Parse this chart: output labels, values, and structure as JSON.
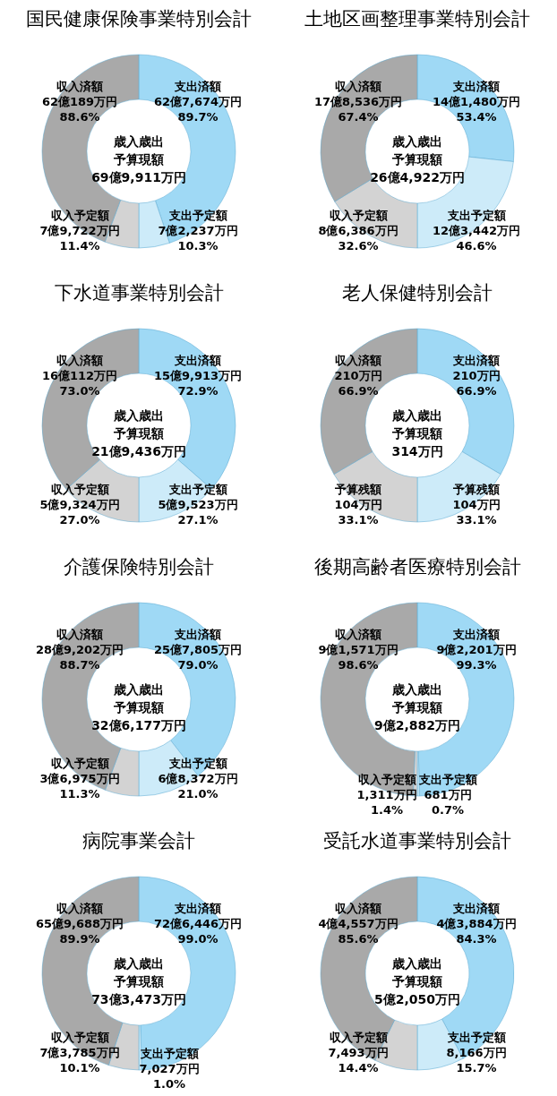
{
  "chart_data": [
    {
      "type": "donut",
      "title": "国民健康保険事業特別会計",
      "categories": [
        "支出済額",
        "支出予定額",
        "収入予定額",
        "収入済額"
      ],
      "values": [
        89.7,
        10.3,
        11.4,
        88.6
      ],
      "colors": [
        "#9fd9f5",
        "#cdebf9",
        "#d3d3d3",
        "#a9a9a9"
      ],
      "value_labels": [
        "62億7,674万円\n89.7%",
        "7億2,237万円\n10.3%",
        "7億9,722万円\n11.4%",
        "62億189万円\n88.6%"
      ],
      "annotations": [
        "歳入歳出予算現額",
        "69億9,911万円"
      ]
    },
    {
      "type": "donut",
      "title": "土地区画整理事業特別会計",
      "categories": [
        "支出済額",
        "支出予定額",
        "収入予定額",
        "収入済額"
      ],
      "values": [
        53.4,
        46.6,
        32.6,
        67.4
      ],
      "colors": [
        "#9fd9f5",
        "#cdebf9",
        "#d3d3d3",
        "#a9a9a9"
      ],
      "value_labels": [
        "14億1,480万円\n53.4%",
        "12億3,442万円\n46.6%",
        "8億6,386万円\n32.6%",
        "17億8,536万円\n67.4%"
      ],
      "annotations": [
        "歳入歳出予算現額",
        "26億4,922万円"
      ]
    },
    {
      "type": "donut",
      "title": "下水道事業特別会計",
      "categories": [
        "支出済額",
        "支出予定額",
        "収入予定額",
        "収入済額"
      ],
      "values": [
        72.9,
        27.1,
        27.0,
        73.0
      ],
      "colors": [
        "#9fd9f5",
        "#cdebf9",
        "#d3d3d3",
        "#a9a9a9"
      ],
      "value_labels": [
        "15億9,913万円\n72.9%",
        "5億9,523万円\n27.1%",
        "5億9,324万円\n27.0%",
        "16億112万円\n73.0%"
      ],
      "annotations": [
        "歳入歳出予算現額",
        "21億9,436万円"
      ]
    },
    {
      "type": "donut",
      "title": "老人保健特別会計",
      "categories": [
        "支出済額",
        "予算残額",
        "予算残額",
        "収入済額"
      ],
      "values": [
        66.9,
        33.1,
        33.1,
        66.9
      ],
      "colors": [
        "#9fd9f5",
        "#cdebf9",
        "#d3d3d3",
        "#a9a9a9"
      ],
      "value_labels": [
        "210万円\n66.9%",
        "104万円\n33.1%",
        "104万円\n33.1%",
        "210万円\n66.9%"
      ],
      "annotations": [
        "歳入歳出予算現額",
        "314万円"
      ]
    },
    {
      "type": "donut",
      "title": "介護保険特別会計",
      "categories": [
        "支出済額",
        "支出予定額",
        "収入予定額",
        "収入済額"
      ],
      "values": [
        79.0,
        21.0,
        11.3,
        88.7
      ],
      "colors": [
        "#9fd9f5",
        "#cdebf9",
        "#d3d3d3",
        "#a9a9a9"
      ],
      "value_labels": [
        "25億7,805万円\n79.0%",
        "6億8,372万円\n21.0%",
        "3億6,975万円\n11.3%",
        "28億9,202万円\n88.7%"
      ],
      "annotations": [
        "歳入歳出予算現額",
        "32億6,177万円"
      ]
    },
    {
      "type": "donut",
      "title": "後期高齢者医療特別会計",
      "categories": [
        "支出済額",
        "支出予定額",
        "収入予定額",
        "収入済額"
      ],
      "values": [
        99.3,
        0.7,
        1.4,
        98.6
      ],
      "colors": [
        "#9fd9f5",
        "#cdebf9",
        "#d3d3d3",
        "#a9a9a9"
      ],
      "value_labels": [
        "9億2,201万円\n99.3%",
        "681万円\n0.7%",
        "1,311万円\n1.4%",
        "9億1,571万円\n98.6%"
      ],
      "annotations": [
        "歳入歳出予算現額",
        "9億2,882万円"
      ]
    },
    {
      "type": "donut",
      "title": "病院事業会計",
      "categories": [
        "支出済額",
        "支出予定額",
        "収入予定額",
        "収入済額"
      ],
      "values": [
        99.0,
        1.0,
        10.1,
        89.9
      ],
      "colors": [
        "#9fd9f5",
        "#cdebf9",
        "#d3d3d3",
        "#a9a9a9"
      ],
      "value_labels": [
        "72億6,446万円\n99.0%",
        "7,027万円\n1.0%",
        "7億3,785万円\n10.1%",
        "65億9,688万円\n89.9%"
      ],
      "annotations": [
        "歳入歳出予算現額",
        "73億3,473万円"
      ]
    },
    {
      "type": "donut",
      "title": "受託水道事業特別会計",
      "categories": [
        "支出済額",
        "支出予定額",
        "収入予定額",
        "収入済額"
      ],
      "values": [
        84.3,
        15.7,
        14.4,
        85.6
      ],
      "colors": [
        "#9fd9f5",
        "#cdebf9",
        "#d3d3d3",
        "#a9a9a9"
      ],
      "value_labels": [
        "4億3,884万円\n84.3%",
        "8,166万円\n15.7%",
        "7,493万円\n14.4%",
        "4億4,557万円\n85.6%"
      ],
      "annotations": [
        "歳入歳出予算現額",
        "5億2,050万円"
      ]
    }
  ]
}
